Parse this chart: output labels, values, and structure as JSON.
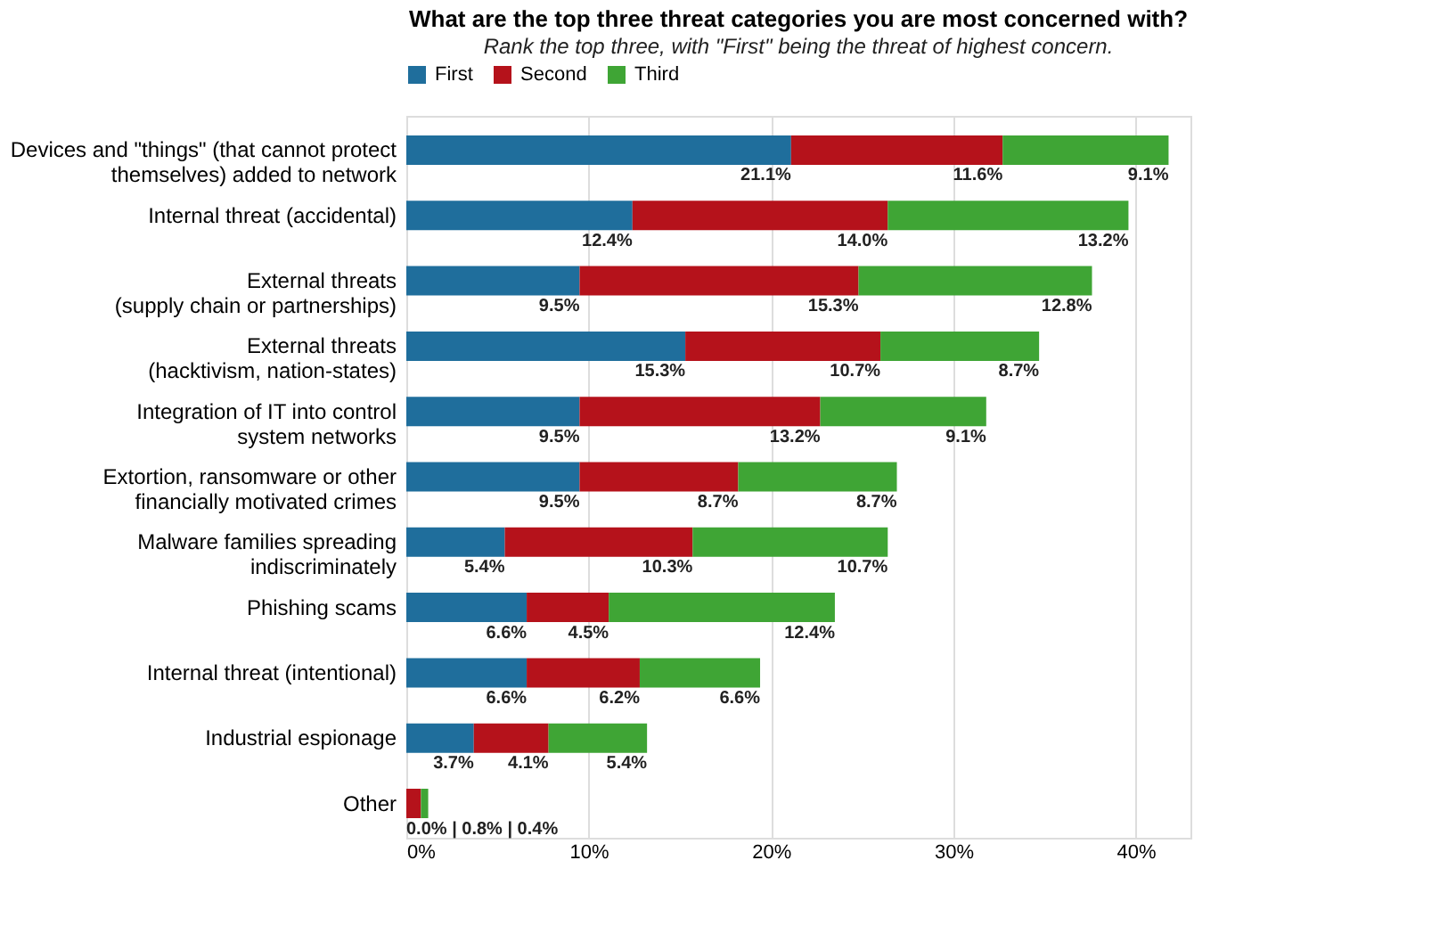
{
  "chart_data": {
    "type": "bar",
    "orientation": "horizontal",
    "stacked": true,
    "title": "What are the top three threat categories you are most concerned with?",
    "subtitle": "Rank the top three, with \"First\" being the threat of highest concern.",
    "categories": [
      "Devices and \"things\" (that cannot protect\nthemselves) added to network",
      "Internal threat (accidental)",
      "External threats\n(supply chain or partnerships)",
      "External threats\n(hacktivism, nation-states)",
      "Integration of IT into control\nsystem networks",
      "Extortion, ransomware or other\nfinancially motivated crimes",
      "Malware families spreading\nindiscriminately",
      "Phishing scams",
      "Internal threat (intentional)",
      "Industrial espionage",
      "Other"
    ],
    "series": [
      {
        "name": "First",
        "color": "#1f6e9c",
        "values": [
          21.1,
          12.4,
          9.5,
          15.3,
          9.5,
          9.5,
          5.4,
          6.6,
          6.6,
          3.7,
          0.0
        ],
        "value_labels": [
          "21.1%",
          "12.4%",
          "9.5%",
          "15.3%",
          "9.5%",
          "9.5%",
          "5.4%",
          "6.6%",
          "6.6%",
          "3.7%",
          null
        ]
      },
      {
        "name": "Second",
        "color": "#b5121b",
        "values": [
          11.6,
          14.0,
          15.3,
          10.7,
          13.2,
          8.7,
          10.3,
          4.5,
          6.2,
          4.1,
          0.8
        ],
        "value_labels": [
          "11.6%",
          "14.0%",
          "15.3%",
          "10.7%",
          "13.2%",
          "8.7%",
          "10.3%",
          "4.5%",
          "6.2%",
          "4.1%",
          "0.0% | 0.8% | 0.4%"
        ]
      },
      {
        "name": "Third",
        "color": "#3fa535",
        "values": [
          9.1,
          13.2,
          12.8,
          8.7,
          9.1,
          8.7,
          10.7,
          12.4,
          6.6,
          5.4,
          0.4
        ],
        "value_labels": [
          "9.1%",
          "13.2%",
          "12.8%",
          "8.7%",
          "9.1%",
          "8.7%",
          "10.7%",
          "12.4%",
          "6.6%",
          "5.4%",
          null
        ]
      }
    ],
    "xlim": [
      0,
      43
    ],
    "xticks": [
      {
        "value": 0,
        "label": "0%"
      },
      {
        "value": 10,
        "label": "10%"
      },
      {
        "value": 20,
        "label": "20%"
      },
      {
        "value": 30,
        "label": "30%"
      },
      {
        "value": 40,
        "label": "40%"
      }
    ],
    "grid": "x",
    "legend": "top"
  }
}
